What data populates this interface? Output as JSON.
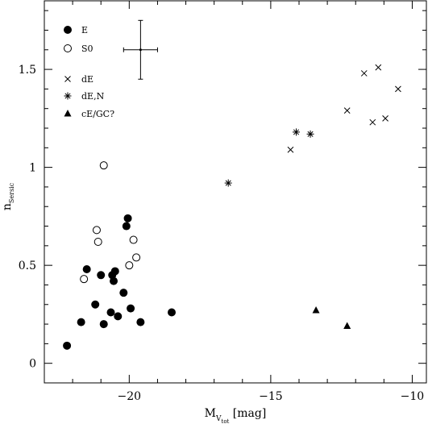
{
  "chart_data": {
    "type": "scatter",
    "xlabel_main": "M",
    "xlabel_sub1": "V",
    "xlabel_sub2": "tot",
    "xlabel_unit": " [mag]",
    "ylabel_main": "n",
    "ylabel_sub": "Sersic",
    "xlim": [
      -23,
      -9.5
    ],
    "ylim": [
      -0.1,
      1.85
    ],
    "x_ticks": [
      {
        "value": -20,
        "label": "−20"
      },
      {
        "value": -15,
        "label": "−15"
      },
      {
        "value": -10,
        "label": "−10"
      }
    ],
    "y_ticks": [
      {
        "value": 0,
        "label": "0"
      },
      {
        "value": 0.5,
        "label": "0.5"
      },
      {
        "value": 1,
        "label": "1"
      },
      {
        "value": 1.5,
        "label": "1.5"
      }
    ],
    "error_bar": {
      "x": -19.6,
      "y": 1.6,
      "xerr": 0.6,
      "yerr": 0.15
    },
    "series": [
      {
        "name": "E",
        "marker": "filled-circle",
        "points": [
          [
            -22.2,
            0.09
          ],
          [
            -21.7,
            0.21
          ],
          [
            -21.5,
            0.48
          ],
          [
            -21.2,
            0.3
          ],
          [
            -21.0,
            0.45
          ],
          [
            -20.9,
            0.2
          ],
          [
            -20.65,
            0.26
          ],
          [
            -20.6,
            0.45
          ],
          [
            -20.55,
            0.42
          ],
          [
            -20.5,
            0.47
          ],
          [
            -20.4,
            0.24
          ],
          [
            -20.2,
            0.36
          ],
          [
            -20.1,
            0.7
          ],
          [
            -20.05,
            0.74
          ],
          [
            -19.95,
            0.28
          ],
          [
            -19.6,
            0.21
          ],
          [
            -18.5,
            0.26
          ]
        ]
      },
      {
        "name": "S0",
        "marker": "open-circle",
        "points": [
          [
            -21.6,
            0.43
          ],
          [
            -21.15,
            0.68
          ],
          [
            -21.1,
            0.62
          ],
          [
            -20.9,
            1.01
          ],
          [
            -20.0,
            0.5
          ],
          [
            -19.85,
            0.63
          ],
          [
            -19.75,
            0.54
          ]
        ]
      },
      {
        "name": "dE",
        "marker": "cross",
        "points": [
          [
            -14.3,
            1.09
          ],
          [
            -12.3,
            1.29
          ],
          [
            -11.7,
            1.48
          ],
          [
            -11.4,
            1.23
          ],
          [
            -11.2,
            1.51
          ],
          [
            -10.95,
            1.25
          ],
          [
            -10.5,
            1.4
          ]
        ]
      },
      {
        "name": "dE,N",
        "marker": "asterisk",
        "points": [
          [
            -16.5,
            0.92
          ],
          [
            -14.1,
            1.18
          ],
          [
            -13.6,
            1.17
          ]
        ]
      },
      {
        "name": "cE/GC?",
        "marker": "filled-triangle",
        "points": [
          [
            -13.4,
            0.27
          ],
          [
            -12.3,
            0.19
          ]
        ]
      }
    ],
    "legend_placement": "top-left"
  }
}
